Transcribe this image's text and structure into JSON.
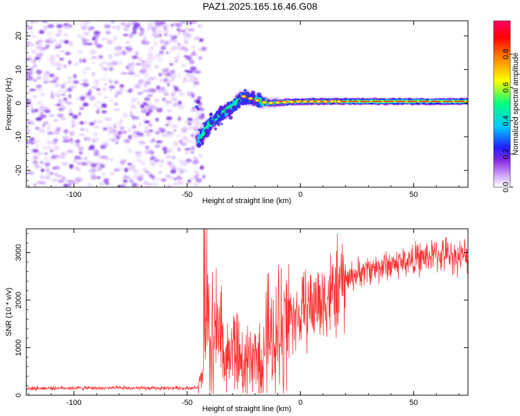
{
  "figure": {
    "title": "PAZ1.2025.165.16.46.G08"
  },
  "chart_data": [
    {
      "type": "heatmap",
      "name": "spectrogram",
      "xlabel": "Height of straight line (km)",
      "ylabel": "Frequency (Hz)",
      "xlim": [
        -121,
        74
      ],
      "ylim": [
        -25,
        24.5
      ],
      "xticks": [
        -100,
        -50,
        0,
        50
      ],
      "yticks": [
        -20,
        -10,
        0,
        10,
        20
      ],
      "colorbar": {
        "label": "Normalized spectral amplitude",
        "range": [
          0,
          1
        ],
        "ticks": [
          "0.0",
          "0.2",
          "0.4",
          "0.6",
          "0.8"
        ],
        "colormap": [
          "#ffffff",
          "#d9b3ff",
          "#8a2be2",
          "#2020ff",
          "#00c8ff",
          "#00ff80",
          "#ffff00",
          "#ff8000",
          "#ff0000",
          "#ff0066"
        ]
      },
      "features": {
        "noise_region_x": [
          -121,
          -45
        ],
        "track": [
          {
            "x": -45,
            "y": -11
          },
          {
            "x": -40,
            "y": -6
          },
          {
            "x": -32,
            "y": -2
          },
          {
            "x": -25,
            "y": 2
          },
          {
            "x": -15,
            "y": 0
          },
          {
            "x": 0,
            "y": 0.5
          },
          {
            "x": 20,
            "y": 0.5
          },
          {
            "x": 74,
            "y": 0.5
          }
        ]
      }
    },
    {
      "type": "line",
      "name": "snr",
      "xlabel": "Height of straight line (km)",
      "ylabel": "SNR (10 * v/v)",
      "xlim": [
        -121,
        74
      ],
      "ylim": [
        0,
        3500
      ],
      "xticks": [
        -100,
        -50,
        0,
        50
      ],
      "yticks": [
        0,
        1000,
        2000,
        3000
      ],
      "color": "#ff3030",
      "x": [
        -121,
        -110,
        -100,
        -90,
        -80,
        -70,
        -60,
        -50,
        -45,
        -43,
        -42,
        -41,
        -40,
        -38,
        -35,
        -32,
        -30,
        -28,
        -26,
        -24,
        -22,
        -20,
        -18,
        -16,
        -14,
        -12,
        -10,
        -8,
        -6,
        -4,
        -2,
        0,
        2,
        4,
        6,
        8,
        10,
        12,
        14,
        16,
        18,
        20,
        22,
        25,
        30,
        35,
        40,
        45,
        50,
        55,
        60,
        65,
        70,
        74
      ],
      "y": [
        140,
        150,
        150,
        150,
        150,
        145,
        150,
        150,
        160,
        400,
        1200,
        1500,
        900,
        1300,
        1100,
        800,
        1000,
        900,
        700,
        700,
        600,
        800,
        900,
        1100,
        1200,
        1000,
        1300,
        1500,
        1600,
        1700,
        1600,
        1700,
        1800,
        1900,
        1900,
        2000,
        2000,
        2100,
        2100,
        2200,
        2300,
        2400,
        2500,
        2550,
        2650,
        2700,
        2750,
        2800,
        2850,
        2900,
        2950,
        2950,
        2900,
        2950
      ]
    }
  ]
}
